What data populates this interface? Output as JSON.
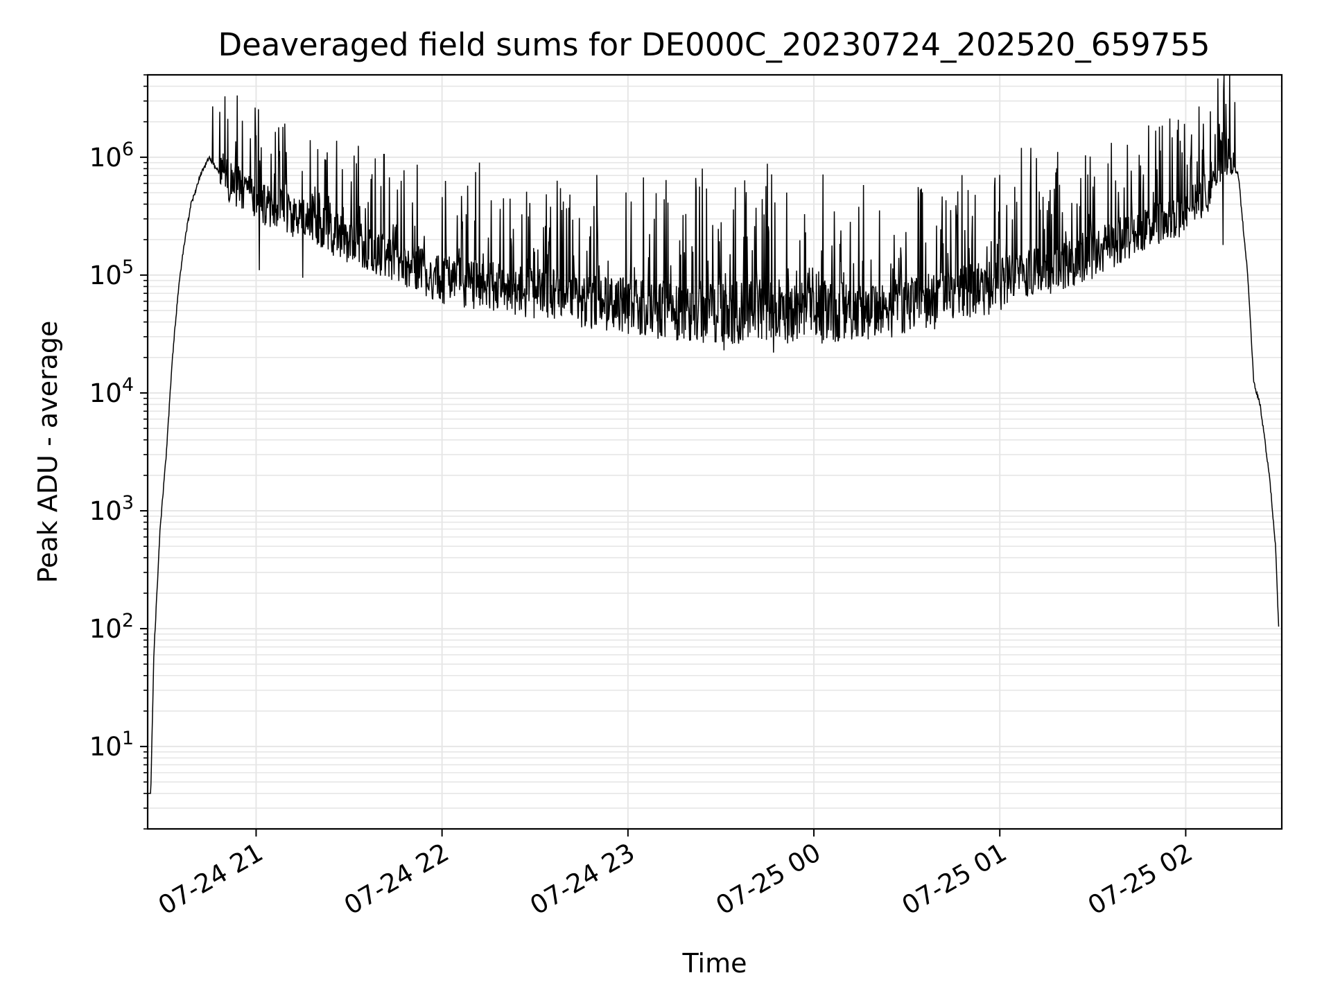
{
  "chart_data": {
    "type": "line",
    "title": "Deaveraged field sums for DE000C_20230724_202520_659755",
    "xlabel": "Time",
    "ylabel": "Peak ADU - average",
    "yscale": "log",
    "grid": true,
    "legend": "none",
    "xlim": [
      "2023-07-24 20:25",
      "2023-07-25 02:31"
    ],
    "ylim": [
      2,
      5000000
    ],
    "x_ticks": [
      {
        "label": "07-24 21",
        "value": "2023-07-24 21:00"
      },
      {
        "label": "07-24 22",
        "value": "2023-07-24 22:00"
      },
      {
        "label": "07-24 23",
        "value": "2023-07-24 23:00"
      },
      {
        "label": "07-25 00",
        "value": "2023-07-25 00:00"
      },
      {
        "label": "07-25 01",
        "value": "2023-07-25 01:00"
      },
      {
        "label": "07-25 02",
        "value": "2023-07-25 02:00"
      }
    ],
    "y_ticks": [
      {
        "base": "10",
        "exp": "1",
        "value": 10
      },
      {
        "base": "10",
        "exp": "2",
        "value": 100
      },
      {
        "base": "10",
        "exp": "3",
        "value": 1000
      },
      {
        "base": "10",
        "exp": "4",
        "value": 10000
      },
      {
        "base": "10",
        "exp": "5",
        "value": 100000
      },
      {
        "base": "10",
        "exp": "6",
        "value": 1000000
      }
    ],
    "series": [
      {
        "color": "#000000",
        "baseline": [
          {
            "x": "2023-07-24 20:25",
            "y": 4
          },
          {
            "x": "2023-07-24 20:26",
            "y": 4
          },
          {
            "x": "2023-07-24 20:27",
            "y": 60
          },
          {
            "x": "2023-07-24 20:29",
            "y": 700
          },
          {
            "x": "2023-07-24 20:31",
            "y": 3000
          },
          {
            "x": "2023-07-24 20:33",
            "y": 20000
          },
          {
            "x": "2023-07-24 20:35",
            "y": 80000
          },
          {
            "x": "2023-07-24 20:37",
            "y": 200000
          },
          {
            "x": "2023-07-24 20:39",
            "y": 400000
          },
          {
            "x": "2023-07-24 20:42",
            "y": 700000
          },
          {
            "x": "2023-07-24 20:45",
            "y": 1000000
          },
          {
            "x": "2023-07-24 20:50",
            "y": 600000
          },
          {
            "x": "2023-07-24 21:00",
            "y": 380000
          },
          {
            "x": "2023-07-24 21:15",
            "y": 260000
          },
          {
            "x": "2023-07-24 21:30",
            "y": 170000
          },
          {
            "x": "2023-07-24 22:00",
            "y": 80000
          },
          {
            "x": "2023-07-24 22:30",
            "y": 60000
          },
          {
            "x": "2023-07-24 23:00",
            "y": 45000
          },
          {
            "x": "2023-07-24 23:30",
            "y": 40000
          },
          {
            "x": "2023-07-25 00:00",
            "y": 40000
          },
          {
            "x": "2023-07-25 00:30",
            "y": 45000
          },
          {
            "x": "2023-07-25 01:00",
            "y": 70000
          },
          {
            "x": "2023-07-25 01:30",
            "y": 130000
          },
          {
            "x": "2023-07-25 01:45",
            "y": 200000
          },
          {
            "x": "2023-07-25 02:00",
            "y": 300000
          },
          {
            "x": "2023-07-25 02:07",
            "y": 450000
          },
          {
            "x": "2023-07-25 02:11",
            "y": 800000
          },
          {
            "x": "2023-07-25 02:14",
            "y": 950000
          },
          {
            "x": "2023-07-25 02:17",
            "y": 700000
          },
          {
            "x": "2023-07-25 02:20",
            "y": 100000
          },
          {
            "x": "2023-07-25 02:22",
            "y": 12000
          },
          {
            "x": "2023-07-25 02:24",
            "y": 8000
          },
          {
            "x": "2023-07-25 02:27",
            "y": 2000
          },
          {
            "x": "2023-07-25 02:29",
            "y": 500
          },
          {
            "x": "2023-07-25 02:30",
            "y": 100
          }
        ],
        "noisy_range": [
          "2023-07-24 20:48",
          "2023-07-25 02:16"
        ],
        "spikes": [
          {
            "x": "2023-07-24 20:46",
            "y": 2700000
          },
          {
            "x": "2023-07-24 21:23",
            "y": 1100000
          },
          {
            "x": "2023-07-24 21:33",
            "y": 1250000
          },
          {
            "x": "2023-07-24 22:12",
            "y": 900000
          },
          {
            "x": "2023-07-24 23:24",
            "y": 800000
          },
          {
            "x": "2023-07-24 23:45",
            "y": 880000
          },
          {
            "x": "2023-07-25 01:07",
            "y": 1200000
          },
          {
            "x": "2023-07-25 01:10",
            "y": 1200000
          },
          {
            "x": "2023-07-25 02:16",
            "y": 800000
          }
        ],
        "dips": [
          {
            "x": "2023-07-24 21:01",
            "y": 110000
          },
          {
            "x": "2023-07-24 21:15",
            "y": 95000
          },
          {
            "x": "2023-07-24 23:31",
            "y": 23000
          },
          {
            "x": "2023-07-24 23:47",
            "y": 22000
          },
          {
            "x": "2023-07-25 02:12",
            "y": 180000
          }
        ]
      }
    ]
  }
}
